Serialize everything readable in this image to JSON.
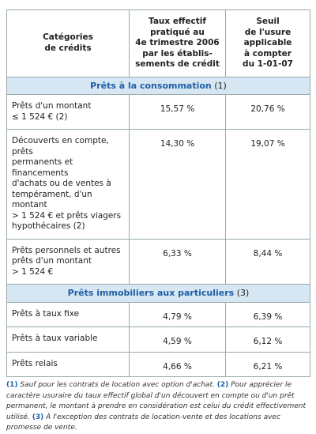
{
  "table": {
    "headers": [
      [
        "Catégories",
        "de crédits"
      ],
      [
        "Taux effectif",
        "pratiqué au",
        "4e trimestre 2006",
        "par les établis-",
        "sements de crédit"
      ],
      [
        "Seuil",
        "de l'usure",
        "applicable",
        "à compter",
        "du 1-01-07"
      ]
    ],
    "sections": [
      {
        "title": "Prêts à la consommation",
        "note": "(1)",
        "rows": [
          [
            [
              "Prêts d'un montant",
              "≤ 1 524 € (2)"
            ],
            "15,57 %",
            "20,76 %"
          ],
          [
            [
              "Découverts en compte, prêts",
              "permanents et financements",
              "d'achats ou de ventes à",
              "tempérament, d'un montant",
              "> 1 524 € et prêts viagers",
              "hypothécaires (2)"
            ],
            "14,30 %",
            "19,07 %"
          ],
          [
            [
              "Prêts personnels et autres",
              "prêts d'un montant",
              "> 1 524 €"
            ],
            "6,33 %",
            "8,44 %"
          ]
        ]
      },
      {
        "title": "Prêts immobiliers aux particuliers",
        "note": "(3)",
        "rows": [
          [
            [
              "Prêts à taux fixe"
            ],
            "4,79 %",
            "6,39 %"
          ],
          [
            [
              "Prêts à taux variable"
            ],
            "4,59 %",
            "6,12 %"
          ],
          [
            [
              "Prêts relais"
            ],
            "4,66 %",
            "6,21 %"
          ]
        ]
      }
    ]
  },
  "footnotes": [
    {
      "marker": "(1)",
      "text": "Sauf pour les contrats de location avec option d'achat."
    },
    {
      "marker": "(2)",
      "text": "Pour apprécier le caractère usuraire du taux effectif global d'un découvert en compte ou d'un prêt permanent, le montant à prendre en considération est celui du crédit effectivement utilisé."
    },
    {
      "marker": "(3)",
      "text": "À l'exception des contrats de location-vente et des locations avec promesse de vente."
    }
  ]
}
